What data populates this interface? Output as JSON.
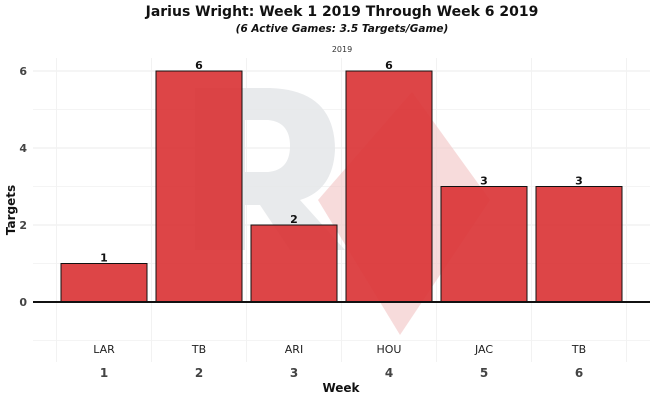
{
  "chart_data": {
    "type": "bar",
    "title": "Jarius Wright: Week 1 2019 Through Week 6 2019",
    "subtitle": "(6 Active Games: 3.5 Targets/Game)",
    "facet_label": "2019",
    "xlabel": "Week",
    "ylabel": "Targets",
    "categories": [
      "1",
      "2",
      "3",
      "4",
      "5",
      "6"
    ],
    "opponents": [
      "LAR",
      "TB",
      "ARI",
      "HOU",
      "JAC",
      "TB"
    ],
    "values": [
      1,
      6,
      2,
      6,
      3,
      3
    ],
    "yticks": [
      0,
      2,
      4,
      6
    ],
    "ylim": [
      -1,
      6.3
    ],
    "grid": true,
    "bar_color": "#d93133"
  }
}
